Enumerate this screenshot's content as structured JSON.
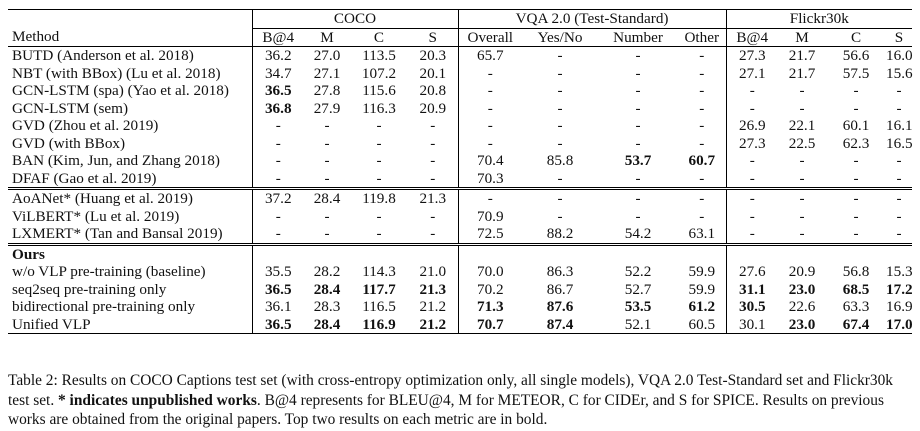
{
  "table": {
    "groups": {
      "coco": "COCO",
      "vqa": "VQA 2.0 (Test-Standard)",
      "flickr": "Flickr30k"
    },
    "headers": {
      "method": "Method",
      "coco": [
        "B@4",
        "M",
        "C",
        "S"
      ],
      "vqa": [
        "Overall",
        "Yes/No",
        "Number",
        "Other"
      ],
      "flickr": [
        "B@4",
        "M",
        "C",
        "S"
      ]
    },
    "section1": [
      {
        "method": "BUTD (Anderson et al. 2018)",
        "coco": [
          "36.2",
          "27.0",
          "113.5",
          "20.3"
        ],
        "vqa": [
          "65.7",
          "-",
          "-",
          "-"
        ],
        "flickr": [
          "27.3",
          "21.7",
          "56.6",
          "16.0"
        ]
      },
      {
        "method": "NBT (with BBox) (Lu et al. 2018)",
        "coco": [
          "34.7",
          "27.1",
          "107.2",
          "20.1"
        ],
        "vqa": [
          "-",
          "-",
          "-",
          "-"
        ],
        "flickr": [
          "27.1",
          "21.7",
          "57.5",
          "15.6"
        ]
      },
      {
        "method": "GCN-LSTM (spa) (Yao et al. 2018)",
        "coco": [
          "36.5",
          "27.8",
          "115.6",
          "20.8"
        ],
        "vqa": [
          "-",
          "-",
          "-",
          "-"
        ],
        "flickr": [
          "-",
          "-",
          "-",
          "-"
        ]
      },
      {
        "method": "GCN-LSTM (sem)",
        "coco": [
          "36.8",
          "27.9",
          "116.3",
          "20.9"
        ],
        "vqa": [
          "-",
          "-",
          "-",
          "-"
        ],
        "flickr": [
          "-",
          "-",
          "-",
          "-"
        ]
      },
      {
        "method": "GVD (Zhou et al. 2019)",
        "coco": [
          "-",
          "-",
          "-",
          "-"
        ],
        "vqa": [
          "-",
          "-",
          "-",
          "-"
        ],
        "flickr": [
          "26.9",
          "22.1",
          "60.1",
          "16.1"
        ]
      },
      {
        "method": "GVD (with BBox)",
        "coco": [
          "-",
          "-",
          "-",
          "-"
        ],
        "vqa": [
          "-",
          "-",
          "-",
          "-"
        ],
        "flickr": [
          "27.3",
          "22.5",
          "62.3",
          "16.5"
        ]
      },
      {
        "method": "BAN (Kim, Jun, and Zhang 2018)",
        "coco": [
          "-",
          "-",
          "-",
          "-"
        ],
        "vqa": [
          "70.4",
          "85.8",
          "53.7",
          "60.7"
        ],
        "flickr": [
          "-",
          "-",
          "-",
          "-"
        ]
      },
      {
        "method": "DFAF (Gao et al. 2019)",
        "coco": [
          "-",
          "-",
          "-",
          "-"
        ],
        "vqa": [
          "70.3",
          "-",
          "-",
          "-"
        ],
        "flickr": [
          "-",
          "-",
          "-",
          "-"
        ]
      }
    ],
    "section2": [
      {
        "method": "AoANet* (Huang et al. 2019)",
        "coco": [
          "37.2",
          "28.4",
          "119.8",
          "21.3"
        ],
        "vqa": [
          "-",
          "-",
          "-",
          "-"
        ],
        "flickr": [
          "-",
          "-",
          "-",
          "-"
        ]
      },
      {
        "method": "ViLBERT* (Lu et al. 2019)",
        "coco": [
          "-",
          "-",
          "-",
          "-"
        ],
        "vqa": [
          "70.9",
          "-",
          "-",
          "-"
        ],
        "flickr": [
          "-",
          "-",
          "-",
          "-"
        ]
      },
      {
        "method": "LXMERT* (Tan and Bansal 2019)",
        "coco": [
          "-",
          "-",
          "-",
          "-"
        ],
        "vqa": [
          "72.5",
          "88.2",
          "54.2",
          "63.1"
        ],
        "flickr": [
          "-",
          "-",
          "-",
          "-"
        ]
      }
    ],
    "ours_label": "Ours",
    "section3": [
      {
        "method": "w/o VLP pre-training (baseline)",
        "coco": [
          "35.5",
          "28.2",
          "114.3",
          "21.0"
        ],
        "vqa": [
          "70.0",
          "86.3",
          "52.2",
          "59.9"
        ],
        "flickr": [
          "27.6",
          "20.9",
          "56.8",
          "15.3"
        ]
      },
      {
        "method": "seq2seq pre-training only",
        "coco": [
          "36.5",
          "28.4",
          "117.7",
          "21.3"
        ],
        "vqa": [
          "70.2",
          "86.7",
          "52.7",
          "59.9"
        ],
        "flickr": [
          "31.1",
          "23.0",
          "68.5",
          "17.2"
        ]
      },
      {
        "method": "bidirectional pre-training only",
        "coco": [
          "36.1",
          "28.3",
          "116.5",
          "21.2"
        ],
        "vqa": [
          "71.3",
          "87.6",
          "53.5",
          "61.2"
        ],
        "flickr": [
          "30.5",
          "22.6",
          "63.3",
          "16.9"
        ]
      },
      {
        "method": "Unified VLP",
        "coco": [
          "36.5",
          "28.4",
          "116.9",
          "21.2"
        ],
        "vqa": [
          "70.7",
          "87.4",
          "52.1",
          "60.5"
        ],
        "flickr": [
          "30.1",
          "23.0",
          "67.4",
          "17.0"
        ]
      }
    ]
  },
  "caption": {
    "part1": "Table 2: Results on COCO Captions test set (with cross-entropy optimization only, all single models), VQA 2.0 Test-Standard set and Flickr30k test set. ",
    "bold": "* indicates unpublished works",
    "part2": ". B@4 represents for BLEU@4, M for METEOR, C for CIDEr, and S for SPICE. Results on previous works are obtained from the original papers. Top two results on each metric are in bold."
  }
}
